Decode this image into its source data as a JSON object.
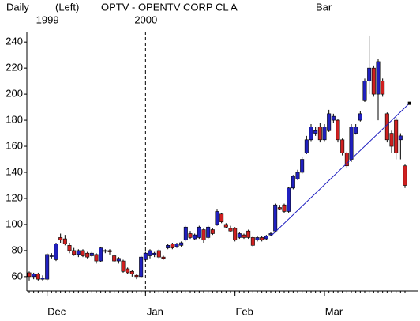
{
  "chart_data": {
    "type": "candlestick",
    "header": [
      "Daily",
      "(Left)",
      "OPTV - OPENTV CORP CL A",
      "Bar"
    ],
    "year_labels": [
      "1999",
      "2000"
    ],
    "categories": [
      null,
      null,
      null,
      null,
      "Dec",
      null,
      null,
      null,
      null,
      null,
      null,
      null,
      null,
      null,
      null,
      null,
      null,
      null,
      null,
      null,
      null,
      null,
      null,
      null,
      null,
      null,
      "Jan",
      null,
      null,
      null,
      null,
      null,
      null,
      null,
      null,
      null,
      null,
      null,
      null,
      null,
      null,
      null,
      null,
      null,
      null,
      null,
      "Feb",
      null,
      null,
      null,
      null,
      null,
      null,
      null,
      null,
      null,
      null,
      null,
      null,
      null,
      null,
      null,
      null,
      null,
      null,
      null,
      "Mar",
      null,
      null,
      null,
      null,
      null,
      null,
      null,
      null,
      null,
      null,
      null,
      null,
      null,
      null,
      null,
      null,
      null,
      null
    ],
    "open": [
      63,
      60,
      62,
      58,
      58,
      76,
      73,
      90,
      89,
      84,
      80,
      77,
      80,
      78,
      76,
      77,
      72,
      80,
      80,
      76,
      72,
      72,
      66,
      64,
      61,
      60,
      73,
      76,
      77,
      80,
      75,
      82,
      85,
      83,
      84,
      88,
      93,
      89,
      90,
      96,
      90,
      96,
      100,
      108,
      100,
      97,
      97,
      90,
      92,
      95,
      90,
      88,
      90,
      89,
      92,
      95,
      113,
      115,
      110,
      128,
      135,
      140,
      155,
      165,
      170,
      175,
      165,
      172,
      180,
      180,
      165,
      155,
      150,
      170,
      180,
      195,
      210,
      220,
      200,
      210,
      185,
      170,
      180,
      165,
      145
    ],
    "high": [
      64,
      63,
      63,
      61,
      78,
      78,
      86,
      93,
      92,
      86,
      82,
      81,
      81,
      79,
      79,
      78,
      83,
      81,
      81,
      77,
      75,
      73,
      67,
      65,
      62,
      76,
      79,
      81,
      79,
      81,
      76,
      85,
      86,
      86,
      87,
      99,
      95,
      93,
      99,
      97,
      99,
      97,
      112,
      109,
      101,
      99,
      98,
      94,
      93,
      96,
      91,
      91,
      91,
      92,
      94,
      116,
      115,
      116,
      129,
      138,
      142,
      152,
      168,
      177,
      175,
      178,
      177,
      188,
      185,
      181,
      166,
      156,
      177,
      177,
      187,
      212,
      245,
      222,
      227,
      212,
      186,
      172,
      182,
      170,
      146
    ],
    "low": [
      57,
      58,
      57,
      57,
      57,
      74,
      72,
      86,
      84,
      78,
      76,
      75,
      75,
      74,
      75,
      70,
      71,
      78,
      77,
      71,
      70,
      63,
      62,
      60,
      58,
      59,
      72,
      74,
      75,
      74,
      73,
      81,
      81,
      82,
      83,
      87,
      89,
      88,
      89,
      86,
      89,
      92,
      99,
      101,
      97,
      94,
      87,
      89,
      89,
      89,
      83,
      87,
      87,
      88,
      91,
      94,
      111,
      109,
      109,
      127,
      134,
      139,
      154,
      164,
      168,
      163,
      164,
      171,
      178,
      163,
      153,
      143,
      148,
      169,
      179,
      194,
      200,
      198,
      180,
      198,
      163,
      155,
      150,
      150,
      128
    ],
    "close": [
      60,
      62,
      58,
      59,
      77,
      76,
      85,
      88,
      85,
      80,
      77,
      80,
      76,
      75,
      78,
      72,
      82,
      80,
      79,
      72,
      74,
      64,
      63,
      62,
      60,
      75,
      78,
      80,
      78,
      75,
      74,
      84,
      82,
      85,
      86,
      98,
      90,
      92,
      98,
      88,
      98,
      93,
      110,
      102,
      98,
      95,
      88,
      93,
      90,
      90,
      84,
      90,
      88,
      91,
      93,
      115,
      112,
      110,
      128,
      137,
      140,
      150,
      165,
      175,
      172,
      165,
      175,
      185,
      183,
      165,
      155,
      145,
      175,
      175,
      185,
      210,
      220,
      200,
      225,
      200,
      165,
      160,
      155,
      168,
      130
    ],
    "up_color": "#2020c0",
    "down_color": "#d02020",
    "trendline": {
      "x": [
        54,
        85
      ],
      "values": [
        91,
        193
      ],
      "color": "#2020c0"
    },
    "ylim": [
      49,
      248
    ],
    "yticks": [
      60,
      80,
      100,
      120,
      140,
      160,
      180,
      200,
      220,
      240
    ]
  }
}
